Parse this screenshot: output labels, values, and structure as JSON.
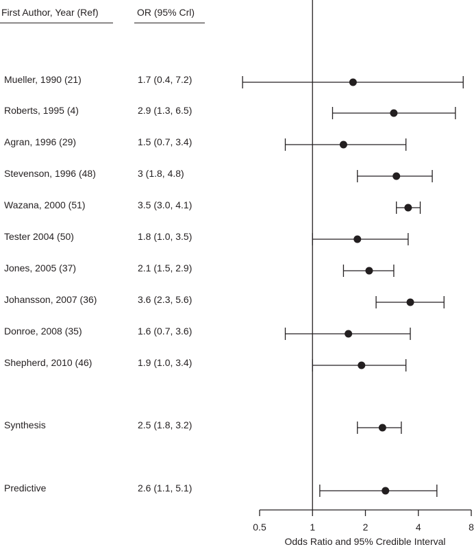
{
  "headers": {
    "author": "First Author, Year (Ref)",
    "or": "OR (95% Crl)"
  },
  "rows": [
    {
      "author": "Mueller, 1990 (21)",
      "or_text": "1.7 (0.4, 7.2)"
    },
    {
      "author": "Roberts, 1995 (4)",
      "or_text": "2.9 (1.3, 6.5)"
    },
    {
      "author": "Agran, 1996 (29)",
      "or_text": "1.5 (0.7, 3.4)"
    },
    {
      "author": "Stevenson, 1996 (48)",
      "or_text": "3 (1.8, 4.8)"
    },
    {
      "author": "Wazana, 2000 (51)",
      "or_text": "3.5 (3.0, 4.1)"
    },
    {
      "author": "Tester 2004 (50)",
      "or_text": "1.8 (1.0, 3.5)"
    },
    {
      "author": "Jones, 2005 (37)",
      "or_text": "2.1 (1.5, 2.9)"
    },
    {
      "author": "Johansson, 2007 (36)",
      "or_text": "3.6 (2.3, 5.6)"
    },
    {
      "author": "Donroe, 2008 (35)",
      "or_text": "1.6 (0.7, 3.6)"
    },
    {
      "author": "Shepherd, 2010 (46)",
      "or_text": "1.9 (1.0, 3.4)"
    },
    {
      "author": "Synthesis",
      "or_text": "2.5 (1.8, 3.2)"
    },
    {
      "author": "Predictive",
      "or_text": "2.6 (1.1, 5.1)"
    }
  ],
  "chart_data": {
    "type": "scatter",
    "title": "",
    "xlabel": "Odds Ratio and 95% Credible Interval",
    "ylabel": "",
    "x_scale": "log",
    "xlim": [
      0.5,
      8
    ],
    "x_ticks": [
      0.5,
      1,
      2,
      4,
      8
    ],
    "x_tick_labels": [
      "0.5",
      "1",
      "2",
      "4",
      "8"
    ],
    "reference_line": 1,
    "grid": false,
    "legend": "none",
    "categories": [
      "Mueller, 1990 (21)",
      "Roberts, 1995 (4)",
      "Agran, 1996 (29)",
      "Stevenson, 1996 (48)",
      "Wazana, 2000 (51)",
      "Tester 2004 (50)",
      "Jones, 2005 (37)",
      "Johansson, 2007 (36)",
      "Donroe, 2008 (35)",
      "Shepherd, 2010 (46)",
      "Synthesis",
      "Predictive"
    ],
    "estimate": [
      1.7,
      2.9,
      1.5,
      3,
      3.5,
      1.8,
      2.1,
      3.6,
      1.6,
      1.9,
      2.5,
      2.6
    ],
    "lower": [
      0.4,
      1.3,
      0.7,
      1.8,
      3.0,
      1.0,
      1.5,
      2.3,
      0.7,
      1.0,
      1.8,
      1.1
    ],
    "upper": [
      7.2,
      6.5,
      3.4,
      4.8,
      4.1,
      3.5,
      2.9,
      5.6,
      3.6,
      3.4,
      3.2,
      5.1
    ],
    "colors": {
      "ink": "#231f20"
    }
  }
}
